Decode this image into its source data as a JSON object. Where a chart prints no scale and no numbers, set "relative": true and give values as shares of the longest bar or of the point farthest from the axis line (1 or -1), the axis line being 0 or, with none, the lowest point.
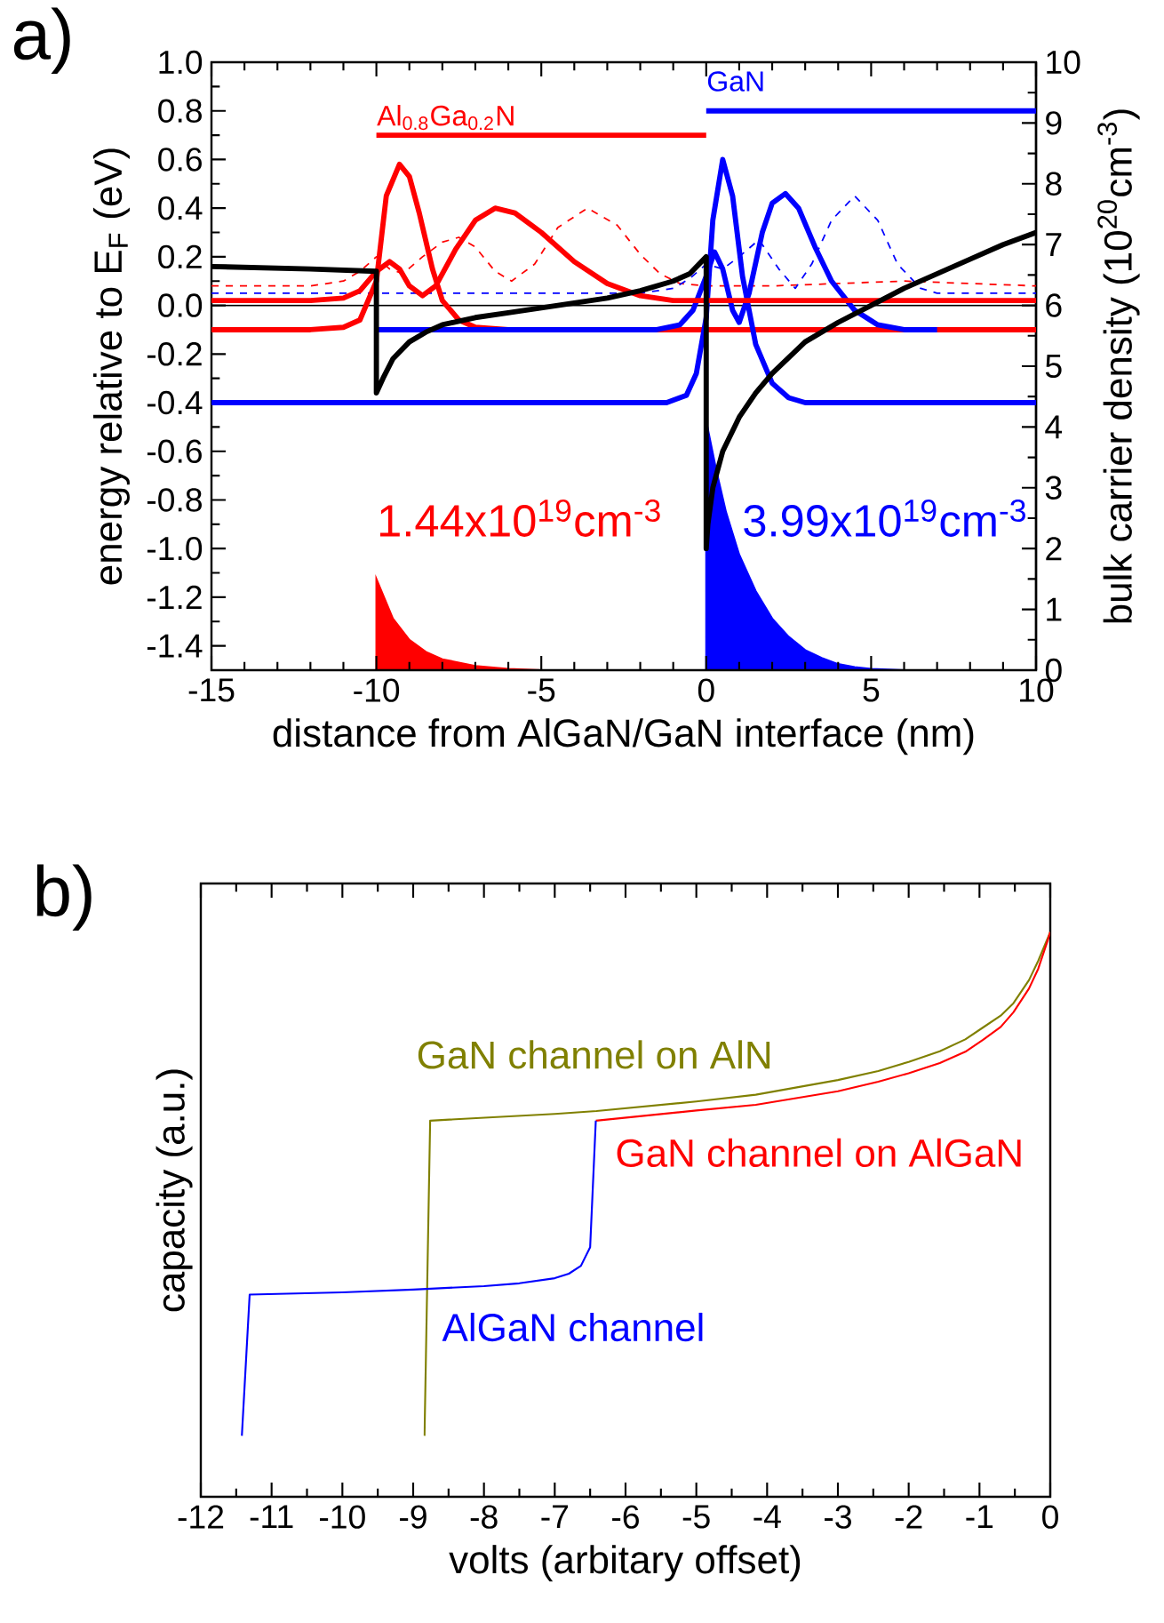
{
  "chart_data": [
    {
      "type": "line",
      "title": "a)",
      "xlabel": "distance from AlGaN/GaN interface  (nm)",
      "ylabel": "energy relative to E$_{F}$  (eV)",
      "y2label": "bulk carrier density  (10$^{20}$cm$^{-3}$)",
      "xlim": [
        -15,
        10
      ],
      "xticks": [
        -15,
        -10,
        -5,
        0,
        5,
        10
      ],
      "ylim": [
        -1.5,
        1.0
      ],
      "yticks": [
        {
          "value": -1.4,
          "label": "-1.4"
        },
        {
          "value": -1.2,
          "label": "-1.2"
        },
        {
          "value": -1.0,
          "label": "-1.0"
        },
        {
          "value": -0.8,
          "label": "-0.8"
        },
        {
          "value": -0.6,
          "label": "-0.6"
        },
        {
          "value": -0.4,
          "label": "-0.4"
        },
        {
          "value": -0.2,
          "label": "-0.2"
        },
        {
          "value": 0,
          "label": "0.0"
        },
        {
          "value": 0.2,
          "label": "0.2"
        },
        {
          "value": 0.4,
          "label": "0.4"
        },
        {
          "value": 0.6,
          "label": "0.6"
        },
        {
          "value": 0.8,
          "label": "0.8"
        },
        {
          "value": 1.0,
          "label": "1.0"
        }
      ],
      "y2lim": [
        0,
        10
      ],
      "y2ticks": [
        0,
        1,
        2,
        3,
        4,
        5,
        6,
        7,
        8,
        9,
        10
      ],
      "ref_lines": [
        {
          "axis": "y",
          "value": 0,
          "color": "#000000"
        }
      ],
      "series": [
        {
          "color": "#ff0000",
          "line_style": "dashed",
          "x": [
            -15,
            -12,
            -11,
            -10.5,
            -10,
            -9.6,
            -9.2,
            -8.6,
            -8,
            -7.5,
            -7,
            -6.4,
            -5.9,
            -5.2,
            -4.5,
            -3.6,
            -2.7,
            -2,
            -1.4,
            -0.8,
            0,
            2,
            4,
            6,
            8,
            10
          ],
          "values": [
            0.08,
            0.08,
            0.1,
            0.14,
            0.2,
            0.15,
            0.13,
            0.2,
            0.26,
            0.28,
            0.24,
            0.14,
            0.1,
            0.17,
            0.32,
            0.4,
            0.33,
            0.21,
            0.13,
            0.09,
            0.08,
            0.08,
            0.09,
            0.1,
            0.09,
            0.08
          ]
        },
        {
          "color": "#0000ff",
          "line_style": "dashed",
          "x": [
            -15,
            -2,
            -1,
            -0.5,
            0,
            0.5,
            1,
            1.6,
            2.2,
            2.7,
            3.2,
            3.8,
            4.5,
            5.2,
            5.8,
            6.5,
            7,
            10
          ],
          "values": [
            0.05,
            0.05,
            0.07,
            0.11,
            0.17,
            0.15,
            0.2,
            0.27,
            0.15,
            0.07,
            0.17,
            0.35,
            0.45,
            0.35,
            0.17,
            0.07,
            0.05,
            0.05
          ]
        },
        {
          "color": "#ff0000",
          "line_style": "solid",
          "x": [
            -15,
            -12,
            -11,
            -10.5,
            -10,
            -9.7,
            -9.3,
            -9,
            -8.7,
            -8.3,
            -8,
            -7.5,
            -7,
            -6,
            10
          ],
          "values": [
            -0.1,
            -0.1,
            -0.09,
            -0.06,
            0.1,
            0.45,
            0.58,
            0.53,
            0.38,
            0.15,
            0.02,
            -0.06,
            -0.09,
            -0.1,
            -0.1
          ]
        },
        {
          "color": "#0000ff",
          "line_style": "solid",
          "x": [
            -10,
            -1.5,
            -0.8,
            -0.4,
            0,
            0.25,
            0.5,
            0.8,
            1,
            1.3,
            1.7,
            2,
            2.4,
            2.8,
            3.3,
            3.8,
            4.5,
            5.2,
            6,
            7
          ],
          "values": [
            -0.1,
            -0.1,
            -0.08,
            -0.02,
            0.12,
            0.22,
            0.15,
            -0.02,
            -0.07,
            0.05,
            0.3,
            0.42,
            0.46,
            0.4,
            0.24,
            0.1,
            -0.02,
            -0.08,
            -0.1,
            -0.1
          ]
        },
        {
          "color": "#0000ff",
          "line_style": "solid",
          "x": [
            -15,
            -1.2,
            -0.6,
            -0.3,
            0,
            0.2,
            0.5,
            0.8,
            1.1,
            1.5,
            2,
            2.5,
            3,
            3.5,
            10
          ],
          "values": [
            -0.4,
            -0.4,
            -0.37,
            -0.28,
            -0.05,
            0.35,
            0.6,
            0.45,
            0.12,
            -0.16,
            -0.32,
            -0.38,
            -0.4,
            -0.4,
            -0.4
          ]
        },
        {
          "color": "#ff0000",
          "line_style": "solid",
          "x": [
            -15,
            -12,
            -11,
            -10.5,
            -10,
            -9.6,
            -9.3,
            -9,
            -8.6,
            -8.2,
            -7.6,
            -7,
            -6.4,
            -5.8,
            -5,
            -4,
            -3,
            -2,
            -1,
            10
          ],
          "values": [
            0.02,
            0.02,
            0.03,
            0.06,
            0.14,
            0.18,
            0.15,
            0.08,
            0.04,
            0.08,
            0.23,
            0.35,
            0.4,
            0.38,
            0.3,
            0.18,
            0.09,
            0.04,
            0.02,
            0.02
          ]
        },
        {
          "color": "#000000",
          "line_style": "solid",
          "x": [
            -15,
            -12,
            -10,
            -10,
            -9.8,
            -9.5,
            -9,
            -8.5,
            -8,
            -7,
            -6,
            -5,
            -4,
            -3,
            -2,
            -1,
            -0.5,
            0,
            0,
            0.05,
            0.2,
            0.5,
            1,
            1.5,
            2,
            3,
            4,
            5,
            6,
            7,
            8,
            9,
            10
          ],
          "values": [
            0.16,
            0.15,
            0.14,
            -0.36,
            -0.3,
            -0.22,
            -0.15,
            -0.11,
            -0.08,
            -0.05,
            -0.03,
            -0.01,
            0.01,
            0.03,
            0.06,
            0.1,
            0.13,
            0.2,
            -1.0,
            -0.9,
            -0.75,
            -0.6,
            -0.46,
            -0.36,
            -0.28,
            -0.15,
            -0.07,
            0.0,
            0.07,
            0.13,
            0.19,
            0.25,
            0.3
          ]
        },
        {
          "name": "Al$_{0.8}$Ga$_{0.2}$N",
          "color": "#ff0000",
          "line_style": "solid",
          "x": [
            -10,
            0
          ],
          "values": [
            0.7,
            0.7
          ]
        },
        {
          "name": "GaN",
          "color": "#0000ff",
          "line_style": "solid",
          "x": [
            0,
            10
          ],
          "values": [
            0.8,
            0.8
          ]
        },
        {
          "name": "1.44x10$^{19}$cm$^{-3}$",
          "type": "area",
          "axis": "y2",
          "color": "#ff0000",
          "x": [
            -15,
            -10,
            -10,
            -9.5,
            -9,
            -8.5,
            -8,
            -7,
            -6,
            -5,
            0
          ],
          "values": [
            0,
            0,
            1.5,
            0.85,
            0.5,
            0.3,
            0.18,
            0.07,
            0.02,
            0,
            0
          ]
        },
        {
          "name": "3.99x10$^{19}$cm$^{-3}$",
          "type": "area",
          "axis": "y2",
          "color": "#0000ff",
          "x": [
            0,
            0,
            0.3,
            0.6,
            1,
            1.5,
            2,
            2.5,
            3,
            3.5,
            4,
            4.5,
            5,
            6,
            10
          ],
          "values": [
            0,
            4.1,
            3.3,
            2.6,
            1.9,
            1.3,
            0.85,
            0.55,
            0.33,
            0.2,
            0.1,
            0.05,
            0.02,
            0,
            0
          ]
        }
      ]
    },
    {
      "type": "line",
      "title": "b)",
      "xlabel": "volts  (arbitary offset)",
      "ylabel": "capacity  (a.u.)",
      "relative": true,
      "xlim": [
        -12,
        0
      ],
      "xticks": [
        -12,
        -11,
        -10,
        -9,
        -8,
        -7,
        -6,
        -5,
        -4,
        -3,
        -2,
        -1,
        0
      ],
      "series": [
        {
          "name": "GaN channel on AlN",
          "color": "#808000",
          "x": [
            -8.84,
            -8.76,
            -7,
            -6.41,
            -5,
            -4.16,
            -3,
            -2.43,
            -2,
            -1.56,
            -1.2,
            -0.95,
            -0.7,
            -0.52,
            -0.3,
            -0.17,
            -0.05,
            0
          ],
          "values": [
            0.108,
            0.666,
            0.678,
            0.683,
            0.7,
            0.712,
            0.738,
            0.754,
            0.77,
            0.789,
            0.81,
            0.831,
            0.852,
            0.874,
            0.915,
            0.949,
            0.985,
            1.0
          ]
        },
        {
          "name": "GaN channel on AlGaN",
          "color": "#ff0000",
          "x": [
            -6.42,
            -5,
            -4.16,
            -3,
            -2.43,
            -2,
            -1.56,
            -1.2,
            -0.95,
            -0.7,
            -0.52,
            -0.3,
            -0.17,
            -0.05,
            0
          ],
          "values": [
            0.666,
            0.684,
            0.694,
            0.718,
            0.735,
            0.75,
            0.768,
            0.788,
            0.809,
            0.832,
            0.858,
            0.9,
            0.935,
            0.98,
            1.0
          ]
        },
        {
          "name": "AlGaN channel",
          "color": "#0000ff",
          "x": [
            -11.42,
            -11.31,
            -10,
            -9,
            -8,
            -7.5,
            -7,
            -6.8,
            -6.63,
            -6.5,
            -6.42
          ],
          "values": [
            0.108,
            0.358,
            0.362,
            0.367,
            0.373,
            0.378,
            0.387,
            0.395,
            0.409,
            0.442,
            0.666
          ]
        }
      ]
    }
  ]
}
